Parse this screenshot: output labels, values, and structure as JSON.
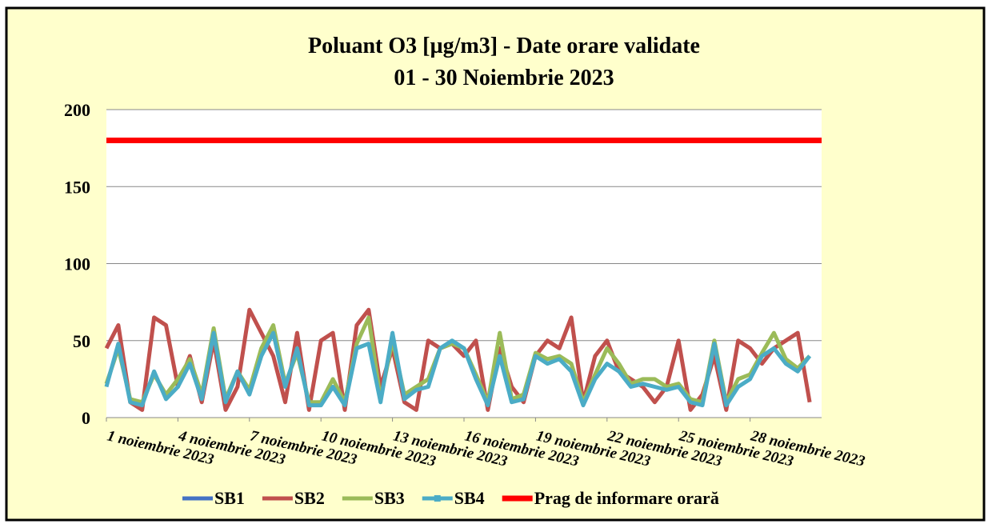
{
  "chart_data": {
    "type": "line",
    "title": "Poluant O3 [µg/m3] - Date orare validate",
    "subtitle": "01 - 30 Noiembrie  2023",
    "x": [
      1,
      1.5,
      2,
      2.5,
      3,
      3.5,
      4,
      4.5,
      5,
      5.5,
      6,
      6.5,
      7,
      7.5,
      8,
      8.5,
      9,
      9.5,
      10,
      10.5,
      11,
      11.5,
      12,
      12.5,
      13,
      13.5,
      14,
      14.5,
      15,
      15.5,
      16,
      16.5,
      17,
      17.5,
      18,
      18.5,
      19,
      19.5,
      20,
      20.5,
      21,
      21.5,
      22,
      22.5,
      23,
      23.5,
      24,
      24.5,
      25,
      25.5,
      26,
      26.5,
      27,
      27.5,
      28,
      28.5,
      29,
      29.5,
      30,
      30.5
    ],
    "xlim": [
      1,
      31
    ],
    "xticks": [
      {
        "value": 1,
        "label": "1 noiembrie 2023"
      },
      {
        "value": 4,
        "label": "4 noiembrie 2023"
      },
      {
        "value": 7,
        "label": "7 noiembrie 2023"
      },
      {
        "value": 10,
        "label": "10 noiembrie 2023"
      },
      {
        "value": 13,
        "label": "13 noiembrie 2023"
      },
      {
        "value": 16,
        "label": "16 noiembrie 2023"
      },
      {
        "value": 19,
        "label": "19 noiembrie 2023"
      },
      {
        "value": 22,
        "label": "22 noiembrie 2023"
      },
      {
        "value": 25,
        "label": "25 noiembrie 2023"
      },
      {
        "value": 28,
        "label": "28 noiembrie 2023"
      }
    ],
    "ylim": [
      0,
      200
    ],
    "yticks": [
      0,
      50,
      100,
      150,
      200
    ],
    "grid": true,
    "series": [
      {
        "name": "SB1",
        "color": "#4472c4",
        "values": [
          null,
          null,
          null,
          null,
          null,
          null,
          null,
          null,
          null,
          null,
          null,
          null,
          null,
          null,
          null,
          null,
          null,
          null,
          null,
          null,
          null,
          null,
          null,
          null,
          null,
          null,
          null,
          null,
          null,
          null,
          null,
          null,
          null,
          null,
          null,
          null,
          null,
          null,
          null,
          null,
          null,
          null,
          null,
          null,
          null,
          null,
          null,
          null,
          null,
          null,
          null,
          null,
          null,
          null,
          null,
          null,
          null,
          null,
          null,
          null
        ]
      },
      {
        "name": "SB2",
        "color": "#c0504d",
        "values": [
          45,
          60,
          10,
          5,
          65,
          60,
          20,
          40,
          10,
          50,
          5,
          20,
          70,
          55,
          40,
          10,
          55,
          5,
          50,
          55,
          5,
          60,
          70,
          20,
          45,
          10,
          5,
          50,
          45,
          48,
          40,
          50,
          5,
          45,
          20,
          10,
          40,
          50,
          45,
          65,
          10,
          40,
          50,
          30,
          25,
          20,
          10,
          20,
          50,
          5,
          15,
          40,
          5,
          50,
          45,
          35,
          45,
          50,
          55,
          10
        ]
      },
      {
        "name": "SB3",
        "color": "#9bbb59",
        "values": [
          22,
          45,
          12,
          10,
          28,
          15,
          25,
          38,
          15,
          58,
          12,
          30,
          18,
          45,
          60,
          22,
          42,
          10,
          10,
          25,
          10,
          48,
          65,
          12,
          50,
          15,
          20,
          25,
          45,
          48,
          45,
          28,
          10,
          55,
          12,
          15,
          42,
          38,
          40,
          35,
          10,
          28,
          45,
          35,
          22,
          25,
          25,
          20,
          22,
          12,
          10,
          50,
          10,
          25,
          28,
          42,
          55,
          38,
          32,
          40
        ]
      },
      {
        "name": "SB4",
        "color": "#4bacc6",
        "values": [
          20,
          48,
          10,
          8,
          30,
          12,
          20,
          35,
          12,
          55,
          10,
          30,
          15,
          40,
          55,
          20,
          45,
          8,
          8,
          20,
          8,
          45,
          48,
          10,
          55,
          12,
          18,
          20,
          45,
          50,
          45,
          25,
          8,
          40,
          10,
          12,
          40,
          35,
          38,
          30,
          8,
          25,
          35,
          30,
          20,
          22,
          20,
          18,
          20,
          10,
          8,
          48,
          8,
          20,
          25,
          40,
          45,
          35,
          30,
          40
        ]
      }
    ],
    "threshold": {
      "name": "Prag de informare orară",
      "value": 180,
      "color": "#ff0000"
    }
  }
}
